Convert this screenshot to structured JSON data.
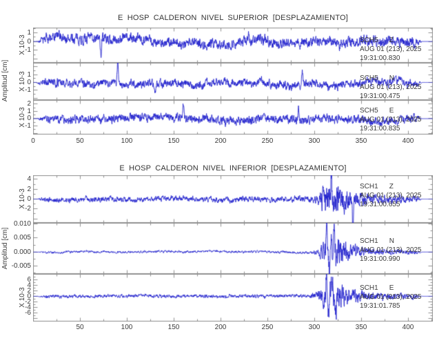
{
  "colors": {
    "trace": "#2323cd",
    "frame": "#909090",
    "text": "#3a3a3a"
  },
  "chart_data": [
    {
      "type": "line",
      "title": "E HOSP CALDERON NIVEL SUPERIOR [DESPLAZAMIENTO]",
      "ylabel": "Amplitud [cm]",
      "xlabel": "",
      "x_range": [
        0,
        426
      ],
      "x_ticks": [
        {
          "v": 0,
          "t": "0"
        },
        {
          "v": 50,
          "t": "50"
        },
        {
          "v": 100,
          "t": "100"
        },
        {
          "v": 150,
          "t": "150"
        },
        {
          "v": 200,
          "t": "200"
        },
        {
          "v": 250,
          "t": "250"
        },
        {
          "v": 300,
          "t": "300"
        },
        {
          "v": 350,
          "t": "350"
        },
        {
          "v": 400,
          "t": "400"
        }
      ],
      "x_minor_step": 25,
      "x_major_step": 50,
      "panels": [
        {
          "station": "SCH5",
          "component": "Z",
          "date": "AUG 01 (213), 2025",
          "time": "19:31:00.830",
          "scale_label": "X 10-3",
          "y_range": [
            -2.38,
            1.54
          ],
          "y_ticks": [
            {
              "v": 1,
              "t": "1"
            },
            {
              "v": 0,
              "t": "0"
            },
            {
              "v": -1,
              "t": "-1"
            }
          ],
          "y_minor_step": 0.5,
          "y_major_step": 1,
          "seed": 7,
          "wander": 0.45,
          "envelope": [
            [
              0,
              0.55
            ],
            [
              426,
              0.55
            ]
          ],
          "spikes": [
            [
              72,
              -2.0
            ],
            [
              230,
              0.9
            ]
          ]
        },
        {
          "station": "SCH5",
          "component": "N",
          "date": "AUG 01 (213), 2025",
          "time": "19:31:00.475",
          "scale_label": "X 10-3",
          "y_range": [
            -2.22,
            2.48
          ],
          "y_ticks": [
            {
              "v": 1,
              "t": "1"
            },
            {
              "v": 0,
              "t": "0"
            },
            {
              "v": -1,
              "t": "-1"
            }
          ],
          "y_minor_step": 0.5,
          "y_major_step": 1,
          "seed": 13,
          "wander": 0.5,
          "envelope": [
            [
              0,
              0.5
            ],
            [
              426,
              0.5
            ]
          ],
          "spikes": [
            [
              90,
              2.6
            ],
            [
              130,
              -1.3
            ],
            [
              287,
              2.1
            ]
          ]
        },
        {
          "station": "SCH5",
          "component": "E",
          "date": "AUG 01 (213), 2025",
          "time": "19:31:00.835",
          "scale_label": "X 10-3",
          "y_range": [
            -2.13,
            2.5
          ],
          "y_ticks": [
            {
              "v": 2,
              "t": "2"
            },
            {
              "v": 1,
              "t": "1"
            },
            {
              "v": 0,
              "t": "0"
            },
            {
              "v": -1,
              "t": "-1"
            }
          ],
          "y_minor_step": 0.5,
          "y_major_step": 1,
          "seed": 21,
          "wander": 0.42,
          "envelope": [
            [
              0,
              0.55
            ],
            [
              426,
              0.55
            ]
          ],
          "spikes": [
            [
              160,
              2.3
            ],
            [
              283,
              1.6
            ]
          ]
        }
      ]
    },
    {
      "type": "line",
      "title": "E HOSP CALDERON NIVEL INFERIOR [DESPLAZAMIENTO]",
      "ylabel": "Amplitud [cm]",
      "xlabel": "",
      "x_range": [
        0,
        426
      ],
      "x_ticks": [
        {
          "v": 50,
          "t": "50"
        },
        {
          "v": 100,
          "t": "100"
        },
        {
          "v": 150,
          "t": "150"
        },
        {
          "v": 200,
          "t": "200"
        },
        {
          "v": 250,
          "t": "250"
        },
        {
          "v": 300,
          "t": "300"
        },
        {
          "v": 350,
          "t": "350"
        },
        {
          "v": 400,
          "t": "400"
        }
      ],
      "x_minor_step": 25,
      "x_major_step": 50,
      "panels": [
        {
          "station": "SCH1",
          "component": "Z",
          "date": "AUG 01 (213), 2025",
          "time": "19:31:00.655",
          "scale_label": "X 10-3",
          "y_range": [
            -4.76,
            4.76
          ],
          "y_ticks": [
            {
              "v": 4,
              "t": "4"
            },
            {
              "v": 2,
              "t": "2"
            },
            {
              "v": 0,
              "t": "0"
            },
            {
              "v": -2,
              "t": "-2"
            }
          ],
          "y_minor_step": 1,
          "y_major_step": 2,
          "seed": 5,
          "wander": 0.25,
          "envelope": [
            [
              0,
              0.5
            ],
            [
              295,
              0.55
            ],
            [
              303,
              0.9
            ],
            [
              308,
              2.4
            ],
            [
              314,
              3.1
            ],
            [
              322,
              3.2
            ],
            [
              332,
              2.5
            ],
            [
              344,
              1.5
            ],
            [
              358,
              1.0
            ],
            [
              380,
              0.75
            ],
            [
              426,
              0.7
            ]
          ],
          "spikes": [
            [
              318,
              4.2
            ],
            [
              341,
              -7.5
            ]
          ]
        },
        {
          "station": "SCH1",
          "component": "N",
          "date": "AUG 01 (213), 2025",
          "time": "19:31:00.990",
          "scale_label": "",
          "y_range": [
            -0.0077,
            0.0103
          ],
          "y_ticks": [
            {
              "v": 0.01,
              "t": "0.010"
            },
            {
              "v": 0.005,
              "t": "0.005"
            },
            {
              "v": 0.0,
              "t": "0.000"
            },
            {
              "v": -0.005,
              "t": "-0.005"
            }
          ],
          "y_minor_step": 0.0025,
          "y_major_step": 0.005,
          "seed": 17,
          "wander": 0.00022,
          "envelope": [
            [
              0,
              0.00038
            ],
            [
              295,
              0.00042
            ],
            [
              303,
              0.0008
            ],
            [
              308,
              0.0025
            ],
            [
              313,
              0.0048
            ],
            [
              318,
              0.0056
            ],
            [
              326,
              0.0046
            ],
            [
              338,
              0.0026
            ],
            [
              352,
              0.0013
            ],
            [
              380,
              0.0008
            ],
            [
              426,
              0.00065
            ]
          ],
          "spikes": [
            [
              313,
              0.0099
            ],
            [
              316,
              -0.0066
            ],
            [
              321,
              0.008
            ]
          ]
        },
        {
          "station": "SCH1",
          "component": "E",
          "date": "AUG 01 (213), 2025",
          "time": "19:31:01.785",
          "scale_label": "X 10-3",
          "y_range": [
            -8.95,
            7.9
          ],
          "y_ticks": [
            {
              "v": 6,
              "t": "6"
            },
            {
              "v": 4,
              "t": "4"
            },
            {
              "v": 2,
              "t": "2"
            },
            {
              "v": 0,
              "t": "0"
            },
            {
              "v": -2,
              "t": "-2"
            },
            {
              "v": -4,
              "t": "-4"
            },
            {
              "v": -6,
              "t": "-6"
            }
          ],
          "y_minor_step": 1,
          "y_major_step": 2,
          "seed": 29,
          "wander": 0.3,
          "envelope": [
            [
              0,
              0.55
            ],
            [
              295,
              0.6
            ],
            [
              303,
              1.3
            ],
            [
              308,
              3.4
            ],
            [
              313,
              4.9
            ],
            [
              319,
              5.3
            ],
            [
              327,
              4.3
            ],
            [
              339,
              2.7
            ],
            [
              352,
              1.5
            ],
            [
              380,
              0.95
            ],
            [
              426,
              0.85
            ]
          ],
          "spikes": [
            [
              313,
              7.4
            ],
            [
              315,
              -8.4
            ],
            [
              319,
              6.3
            ],
            [
              323,
              -6.2
            ]
          ]
        }
      ]
    }
  ]
}
